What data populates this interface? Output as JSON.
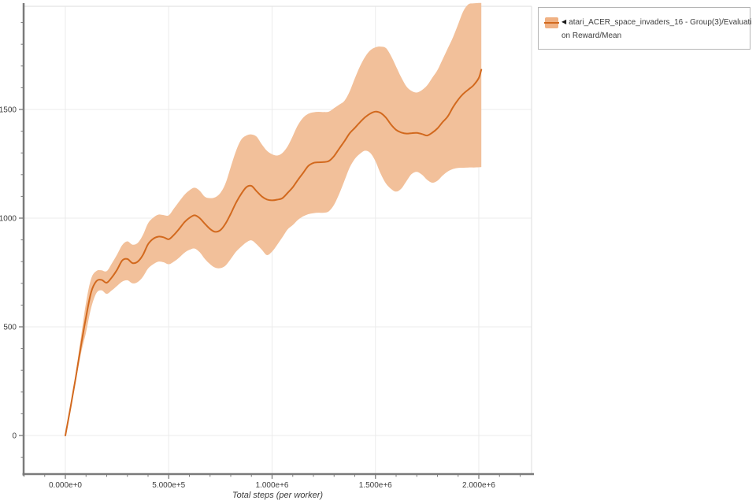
{
  "colors": {
    "background": "#ffffff",
    "line": "#d2691e",
    "band": "#f2c09a",
    "grid": "#ebebeb",
    "frame_light": "#e3e3e3",
    "axis": "#7a7a7a",
    "tick_label": "#3d3d3d",
    "legend_swatch_fill": "#f0b183",
    "legend_swatch_line": "#d2691e"
  },
  "legend": {
    "arrow": "◀",
    "line1": "atari_ACER_space_invaders_16 - Group(3)/Evaluati",
    "line2": "on Reward/Mean"
  },
  "axis_titles": {
    "x": "Total steps (per worker)"
  },
  "chart_data": {
    "type": "line",
    "title": "",
    "xlabel": "Total steps (per worker)",
    "ylabel": "",
    "grid": true,
    "legend_position": "top-right-outside",
    "xlim": [
      -201900,
      2255200
    ],
    "ylim": [
      -177.5,
      1974.6
    ],
    "x_ticks": [
      {
        "v": 0,
        "label": "0.000e+0"
      },
      {
        "v": 500000,
        "label": "5.000e+5"
      },
      {
        "v": 1000000,
        "label": "1.000e+6"
      },
      {
        "v": 1500000,
        "label": "1.500e+6"
      },
      {
        "v": 2000000,
        "label": "2.000e+6"
      }
    ],
    "y_ticks": [
      {
        "v": 0,
        "label": "0"
      },
      {
        "v": 500,
        "label": "500"
      },
      {
        "v": 1000,
        "label": "1000"
      },
      {
        "v": 1500,
        "label": "1500"
      }
    ],
    "x_minor_step": 100000,
    "x_minor_range": [
      -200000,
      2200000
    ],
    "y_minor_step": 100,
    "y_minor_range": [
      -100,
      1900
    ],
    "series": [
      {
        "name": "atari_ACER_space_invaders_16 - Group(3)/Evaluation Reward/Mean",
        "color": "#d2691e",
        "band_color": "#f2c09a",
        "points_format": [
          "step",
          "mean",
          "band_lower",
          "band_upper"
        ],
        "points": [
          [
            0,
            0,
            0,
            0
          ],
          [
            25000,
            130,
            122,
            140
          ],
          [
            50000,
            265,
            248,
            285
          ],
          [
            75000,
            410,
            375,
            450
          ],
          [
            100000,
            545,
            475,
            612
          ],
          [
            125000,
            660,
            588,
            722
          ],
          [
            150000,
            710,
            655,
            757
          ],
          [
            175000,
            716,
            668,
            760
          ],
          [
            200000,
            703,
            652,
            756
          ],
          [
            225000,
            728,
            668,
            792
          ],
          [
            250000,
            762,
            688,
            832
          ],
          [
            275000,
            805,
            708,
            876
          ],
          [
            300000,
            812,
            714,
            893
          ],
          [
            325000,
            793,
            700,
            878
          ],
          [
            350000,
            800,
            706,
            886
          ],
          [
            375000,
            830,
            730,
            922
          ],
          [
            400000,
            880,
            768,
            976
          ],
          [
            425000,
            905,
            788,
            1002
          ],
          [
            450000,
            915,
            800,
            1016
          ],
          [
            475000,
            912,
            797,
            1014
          ],
          [
            500000,
            903,
            788,
            1013
          ],
          [
            525000,
            923,
            800,
            1044
          ],
          [
            550000,
            950,
            818,
            1076
          ],
          [
            575000,
            980,
            840,
            1106
          ],
          [
            600000,
            1001,
            854,
            1128
          ],
          [
            625000,
            1013,
            860,
            1140
          ],
          [
            650000,
            1000,
            843,
            1126
          ],
          [
            675000,
            974,
            812,
            1098
          ],
          [
            700000,
            950,
            788,
            1092
          ],
          [
            725000,
            937,
            772,
            1096
          ],
          [
            750000,
            945,
            770,
            1116
          ],
          [
            775000,
            975,
            782,
            1160
          ],
          [
            800000,
            1020,
            812,
            1235
          ],
          [
            825000,
            1070,
            845,
            1308
          ],
          [
            850000,
            1110,
            868,
            1360
          ],
          [
            875000,
            1142,
            888,
            1380
          ],
          [
            900000,
            1148,
            898,
            1385
          ],
          [
            925000,
            1124,
            880,
            1375
          ],
          [
            950000,
            1100,
            855,
            1340
          ],
          [
            975000,
            1086,
            830,
            1310
          ],
          [
            1000000,
            1082,
            846,
            1294
          ],
          [
            1025000,
            1085,
            878,
            1288
          ],
          [
            1050000,
            1092,
            912,
            1300
          ],
          [
            1075000,
            1116,
            948,
            1330
          ],
          [
            1100000,
            1142,
            968,
            1378
          ],
          [
            1125000,
            1176,
            992,
            1428
          ],
          [
            1150000,
            1208,
            1008,
            1462
          ],
          [
            1175000,
            1240,
            1018,
            1480
          ],
          [
            1200000,
            1254,
            1023,
            1487
          ],
          [
            1225000,
            1257,
            1025,
            1489
          ],
          [
            1250000,
            1258,
            1025,
            1488
          ],
          [
            1275000,
            1263,
            1032,
            1490
          ],
          [
            1300000,
            1286,
            1062,
            1506
          ],
          [
            1325000,
            1320,
            1112,
            1522
          ],
          [
            1350000,
            1354,
            1172,
            1540
          ],
          [
            1375000,
            1390,
            1232,
            1582
          ],
          [
            1400000,
            1415,
            1272,
            1642
          ],
          [
            1425000,
            1441,
            1296,
            1698
          ],
          [
            1450000,
            1464,
            1310,
            1742
          ],
          [
            1475000,
            1481,
            1300,
            1772
          ],
          [
            1500000,
            1490,
            1262,
            1786
          ],
          [
            1525000,
            1484,
            1205,
            1789
          ],
          [
            1550000,
            1463,
            1160,
            1783
          ],
          [
            1575000,
            1431,
            1135,
            1747
          ],
          [
            1600000,
            1406,
            1122,
            1697
          ],
          [
            1625000,
            1394,
            1136,
            1647
          ],
          [
            1650000,
            1389,
            1170,
            1606
          ],
          [
            1675000,
            1391,
            1203,
            1585
          ],
          [
            1700000,
            1392,
            1213,
            1578
          ],
          [
            1725000,
            1387,
            1200,
            1589
          ],
          [
            1750000,
            1380,
            1176,
            1611
          ],
          [
            1775000,
            1393,
            1163,
            1646
          ],
          [
            1800000,
            1413,
            1172,
            1681
          ],
          [
            1825000,
            1442,
            1196,
            1731
          ],
          [
            1850000,
            1468,
            1215,
            1781
          ],
          [
            1875000,
            1510,
            1226,
            1832
          ],
          [
            1900000,
            1545,
            1231,
            1892
          ],
          [
            1925000,
            1572,
            1232,
            1952
          ],
          [
            1950000,
            1592,
            1233,
            1984
          ],
          [
            1975000,
            1612,
            1233,
            1988
          ],
          [
            2000000,
            1645,
            1234,
            1990
          ],
          [
            2012000,
            1683,
            1235,
            1990
          ]
        ]
      }
    ]
  }
}
